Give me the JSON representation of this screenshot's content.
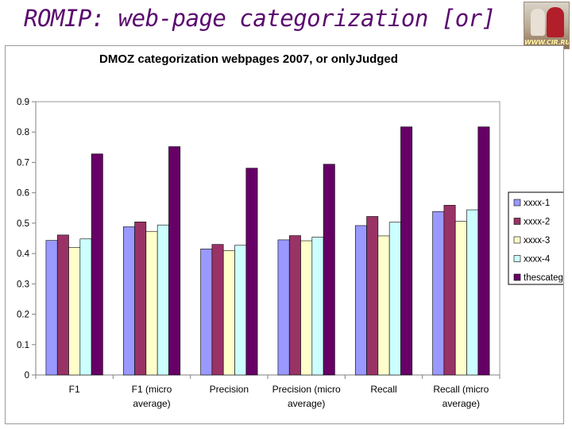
{
  "slide": {
    "title": "ROMIP: web-page categorization [or]",
    "logo_text": "WWW.CIR.RU"
  },
  "chart_data": {
    "type": "bar",
    "title": "DMOZ categorization webpages 2007, or onlyJudged",
    "xlabel": "",
    "ylabel": "",
    "ylim": [
      0,
      0.9
    ],
    "yticks": [
      0,
      0.1,
      0.2,
      0.3,
      0.4,
      0.5,
      0.6,
      0.7,
      0.8,
      0.9
    ],
    "ytick_labels": [
      "0",
      "0.1",
      "0.2",
      "0.3",
      "0.4",
      "0.5",
      "0.6",
      "0.7",
      "0.8",
      "0.9"
    ],
    "grid": false,
    "legend_position": "right",
    "categories": [
      [
        "F1"
      ],
      [
        "F1 (micro",
        "average)"
      ],
      [
        "Precision"
      ],
      [
        "Precision (micro",
        "average)"
      ],
      [
        "Recall"
      ],
      [
        "Recall (micro",
        "average)"
      ]
    ],
    "series": [
      {
        "name": "xxxx-1",
        "color": "#9999ff",
        "values": [
          0.443,
          0.488,
          0.415,
          0.445,
          0.492,
          0.538
        ]
      },
      {
        "name": "xxxx-2",
        "color": "#993366",
        "values": [
          0.461,
          0.504,
          0.43,
          0.459,
          0.522,
          0.559
        ]
      },
      {
        "name": "xxxx-3",
        "color": "#ffffcc",
        "values": [
          0.42,
          0.473,
          0.41,
          0.442,
          0.458,
          0.506
        ]
      },
      {
        "name": "xxxx-4",
        "color": "#ccffff",
        "values": [
          0.448,
          0.494,
          0.427,
          0.454,
          0.503,
          0.544
        ]
      },
      {
        "name": "thescateg",
        "color": "#660066",
        "values": [
          0.728,
          0.752,
          0.681,
          0.694,
          0.817,
          0.817
        ]
      }
    ]
  }
}
